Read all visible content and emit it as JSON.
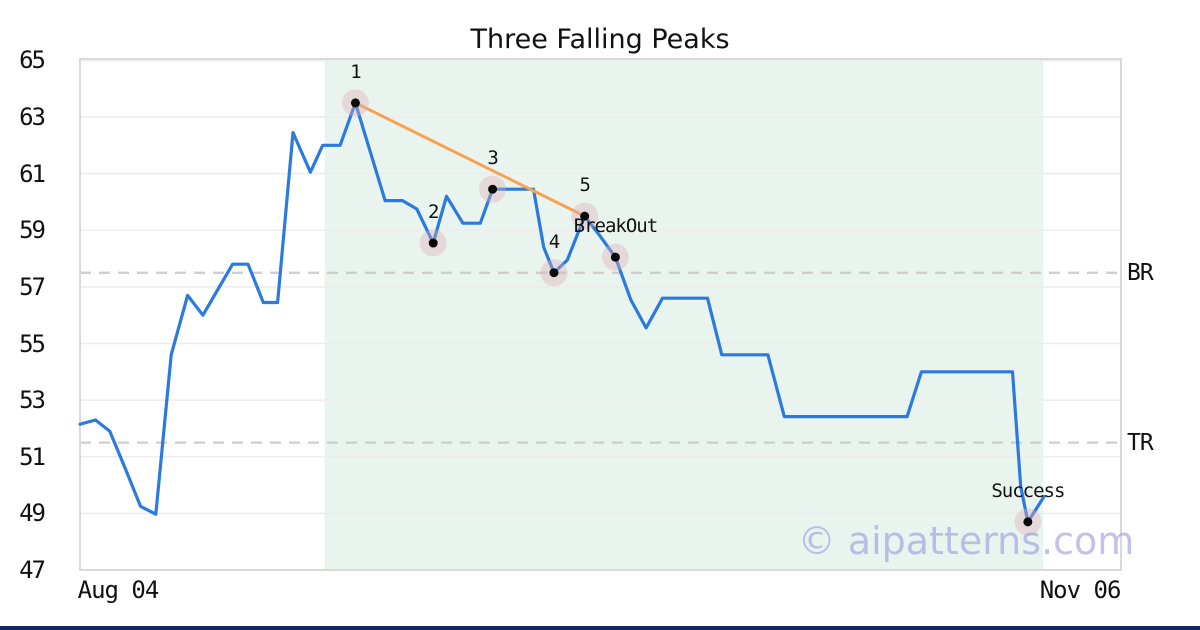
{
  "title": "Three Falling Peaks",
  "watermark": "© aipatterns.com",
  "colors": {
    "line_blue": "#2b7ade",
    "trendline_orange": "#f7a24f",
    "shade_green": "#e9f4ef",
    "halo_pink": "#dfaab6",
    "marker_black": "#0a0a0a",
    "gridline_gray": "#ececec",
    "border_gray": "#d9d9d9",
    "dashed_gray": "#cdcdcd",
    "text_black": "#111111",
    "watermark_lavender": "#9b9be0",
    "bottom_bar_blue": "#16275f",
    "background": "#ffffff"
  },
  "chart_data": {
    "type": "line",
    "title": "Three Falling Peaks",
    "xlabel": "",
    "ylabel": "",
    "grid": "horizontal",
    "legend": "none",
    "xlim_days": [
      -3.71,
      98.0
    ],
    "ylim": [
      47.0,
      65.05
    ],
    "y_ticks": [
      65,
      63,
      61,
      59,
      57,
      55,
      53,
      51,
      49,
      47
    ],
    "x_ticks": [
      {
        "label": "Aug 04",
        "x": 0
      },
      {
        "label": "Nov 06",
        "x": 94
      }
    ],
    "shaded_region": {
      "x0": 20.2,
      "x1": 90.4
    },
    "hlines": [
      {
        "label": "BR",
        "y": 57.5
      },
      {
        "label": "TR",
        "y": 51.5
      }
    ],
    "trendline": {
      "from": {
        "x": 23.2,
        "y": 63.5
      },
      "to": {
        "x": 45.6,
        "y": 59.5
      }
    },
    "series": [
      {
        "name": "price",
        "points": [
          [
            -3.7,
            52.15
          ],
          [
            -2.2,
            52.3
          ],
          [
            -0.8,
            51.9
          ],
          [
            0.7,
            50.6
          ],
          [
            2.2,
            49.25
          ],
          [
            3.7,
            48.97
          ],
          [
            5.2,
            54.6
          ],
          [
            6.8,
            56.7
          ],
          [
            8.3,
            56.0
          ],
          [
            11.2,
            57.8
          ],
          [
            12.7,
            57.8
          ],
          [
            14.2,
            56.45
          ],
          [
            15.6,
            56.45
          ],
          [
            17.1,
            62.45
          ],
          [
            18.8,
            61.05
          ],
          [
            20.0,
            62.0
          ],
          [
            21.7,
            62.0
          ],
          [
            23.2,
            63.5
          ],
          [
            26.1,
            60.05
          ],
          [
            27.8,
            60.05
          ],
          [
            29.2,
            59.75
          ],
          [
            30.8,
            58.55
          ],
          [
            32.1,
            60.2
          ],
          [
            33.7,
            59.25
          ],
          [
            35.4,
            59.25
          ],
          [
            36.6,
            60.45
          ],
          [
            40.6,
            60.45
          ],
          [
            41.6,
            58.4
          ],
          [
            42.6,
            57.5
          ],
          [
            43.9,
            57.95
          ],
          [
            45.6,
            59.5
          ],
          [
            47.1,
            58.8
          ],
          [
            48.6,
            58.05
          ],
          [
            50.1,
            56.55
          ],
          [
            51.6,
            55.55
          ],
          [
            53.2,
            56.6
          ],
          [
            57.6,
            56.6
          ],
          [
            59.0,
            54.6
          ],
          [
            63.5,
            54.6
          ],
          [
            65.1,
            52.42
          ],
          [
            77.1,
            52.42
          ],
          [
            78.5,
            54.0
          ],
          [
            87.4,
            54.0
          ],
          [
            88.2,
            49.95
          ],
          [
            88.9,
            48.7
          ],
          [
            90.5,
            49.6
          ]
        ]
      }
    ],
    "markers": [
      {
        "label": "1",
        "x": 23.2,
        "y": 63.5
      },
      {
        "label": "2",
        "x": 30.8,
        "y": 58.55
      },
      {
        "label": "3",
        "x": 36.6,
        "y": 60.45
      },
      {
        "label": "4",
        "x": 42.6,
        "y": 57.5
      },
      {
        "label": "5",
        "x": 45.6,
        "y": 59.5
      },
      {
        "label": "BreakOut",
        "x": 48.6,
        "y": 58.05
      },
      {
        "label": "Success",
        "x": 88.9,
        "y": 48.7
      }
    ]
  }
}
